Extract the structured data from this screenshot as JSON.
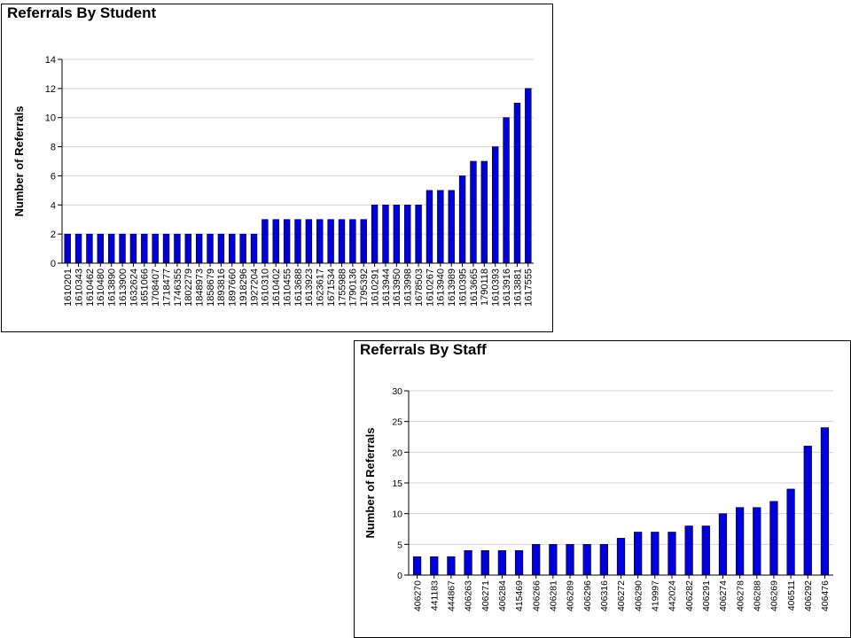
{
  "colors": {
    "bar": "#0000dd",
    "bar_edge": "#000000",
    "grid": "#d3d3d3",
    "axis": "#000000"
  },
  "chart_data": [
    {
      "type": "bar",
      "title": "Referrals By Student",
      "xlabel": "",
      "ylabel": "Number of Referrals",
      "ylim": [
        0,
        14
      ],
      "yticks": [
        0,
        2,
        4,
        6,
        8,
        10,
        12,
        14
      ],
      "grid": true,
      "categories": [
        "1610201",
        "1610343",
        "1610462",
        "1610480",
        "1613890",
        "1613900",
        "1632624",
        "1651066",
        "1708407",
        "1718477",
        "1746355",
        "1802279",
        "1848973",
        "1858679",
        "1893816",
        "1897660",
        "1918296",
        "1927204",
        "1610310",
        "1610402",
        "1610455",
        "1613688",
        "1613923",
        "1623617",
        "1671534",
        "1755988",
        "1790136",
        "1795392",
        "1610291",
        "1613944",
        "1613950",
        "1613998",
        "1678503",
        "1610267",
        "1613940",
        "1613989",
        "1610395",
        "1613665",
        "1790118",
        "1610393",
        "1613916",
        "1613881",
        "1617555"
      ],
      "values": [
        2,
        2,
        2,
        2,
        2,
        2,
        2,
        2,
        2,
        2,
        2,
        2,
        2,
        2,
        2,
        2,
        2,
        2,
        3,
        3,
        3,
        3,
        3,
        3,
        3,
        3,
        3,
        3,
        4,
        4,
        4,
        4,
        4,
        5,
        5,
        5,
        6,
        7,
        7,
        8,
        10,
        11,
        12
      ]
    },
    {
      "type": "bar",
      "title": "Referrals By Staff",
      "xlabel": "",
      "ylabel": "Number of Referrals",
      "ylim": [
        0,
        30
      ],
      "yticks": [
        0,
        5,
        10,
        15,
        20,
        25,
        30
      ],
      "grid": true,
      "categories": [
        "406270",
        "441183",
        "444867",
        "406263",
        "406271",
        "406284",
        "415469",
        "406266",
        "406281",
        "406289",
        "406296",
        "406316",
        "406272",
        "406290",
        "419997",
        "442024",
        "406282",
        "406291",
        "406274",
        "406278",
        "406288",
        "406269",
        "406511",
        "406292",
        "406476"
      ],
      "values": [
        3,
        3,
        3,
        4,
        4,
        4,
        4,
        5,
        5,
        5,
        5,
        5,
        6,
        7,
        7,
        7,
        8,
        8,
        10,
        11,
        11,
        12,
        14,
        21,
        24
      ]
    }
  ]
}
